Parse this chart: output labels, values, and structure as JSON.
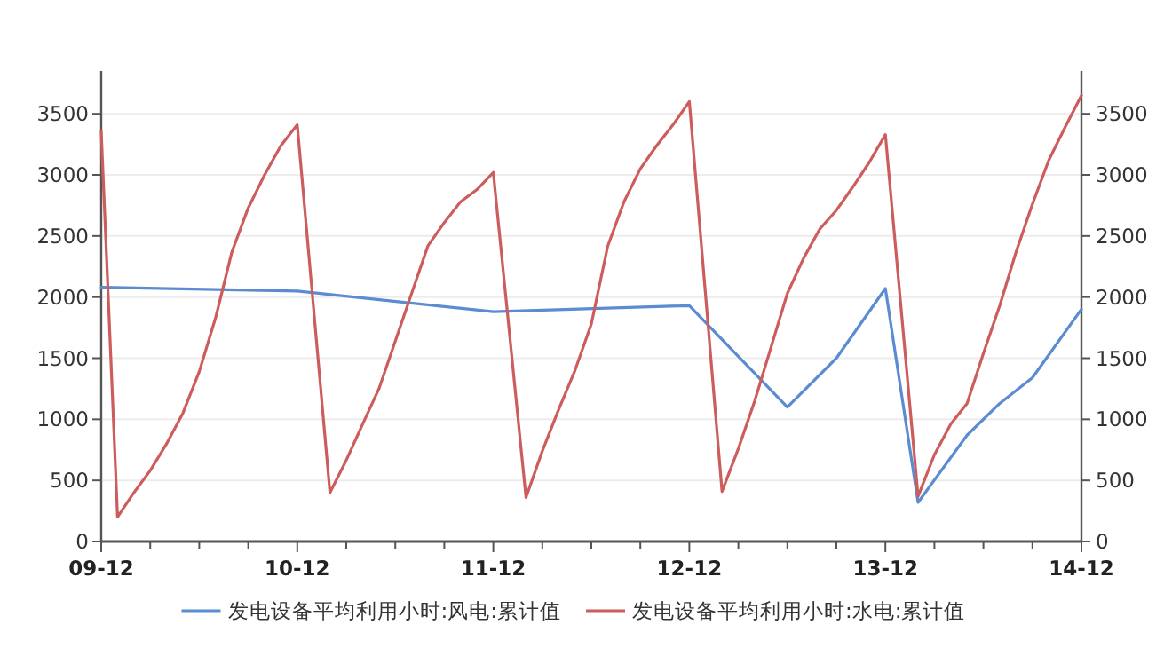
{
  "chart_data": {
    "type": "line",
    "series": [
      {
        "name": "发电设备平均利用小时:风电:累计值",
        "color": "#5b8bd0",
        "x": [
          "2009-12",
          "2010-12",
          "2011-12",
          "2012-12",
          "2013-06",
          "2013-09",
          "2013-12",
          "2014-02",
          "2014-05",
          "2014-07",
          "2014-09",
          "2014-12"
        ],
        "values": [
          2080,
          2050,
          1880,
          1930,
          1100,
          1500,
          2070,
          320,
          870,
          1130,
          1340,
          1900
        ]
      },
      {
        "name": "发电设备平均利用小时:水电:累计值",
        "color": "#cd5c5c",
        "x": [
          "2009-12",
          "2010-01",
          "2010-02",
          "2010-03",
          "2010-04",
          "2010-05",
          "2010-06",
          "2010-07",
          "2010-08",
          "2010-09",
          "2010-10",
          "2010-11",
          "2010-12",
          "2011-02",
          "2011-03",
          "2011-04",
          "2011-05",
          "2011-06",
          "2011-07",
          "2011-08",
          "2011-09",
          "2011-10",
          "2011-11",
          "2011-12",
          "2012-02",
          "2012-03",
          "2012-04",
          "2012-05",
          "2012-06",
          "2012-07",
          "2012-08",
          "2012-09",
          "2012-10",
          "2012-11",
          "2012-12",
          "2013-02",
          "2013-03",
          "2013-04",
          "2013-05",
          "2013-06",
          "2013-07",
          "2013-08",
          "2013-09",
          "2013-10",
          "2013-11",
          "2013-12",
          "2014-02",
          "2014-03",
          "2014-04",
          "2014-05",
          "2014-06",
          "2014-07",
          "2014-08",
          "2014-09",
          "2014-10",
          "2014-11",
          "2014-12"
        ],
        "values": [
          3360,
          200,
          400,
          580,
          800,
          1050,
          1390,
          1830,
          2370,
          2730,
          3000,
          3240,
          3410,
          400,
          665,
          960,
          1250,
          1640,
          2030,
          2420,
          2610,
          2780,
          2880,
          3020,
          360,
          740,
          1080,
          1400,
          1780,
          2415,
          2780,
          3050,
          3240,
          3410,
          3600,
          410,
          760,
          1150,
          1590,
          2030,
          2320,
          2560,
          2710,
          2900,
          3100,
          3330,
          370,
          710,
          960,
          1130,
          1540,
          1930,
          2370,
          2760,
          3120,
          3390,
          3650
        ]
      }
    ],
    "xlim": [
      "2009-12",
      "2014-12"
    ],
    "xticks": [
      {
        "value": "2009-12",
        "label": "09-12"
      },
      {
        "value": "2010-03",
        "label": null
      },
      {
        "value": "2010-06",
        "label": null
      },
      {
        "value": "2010-09",
        "label": null
      },
      {
        "value": "2010-12",
        "label": "10-12"
      },
      {
        "value": "2011-03",
        "label": null
      },
      {
        "value": "2011-06",
        "label": null
      },
      {
        "value": "2011-09",
        "label": null
      },
      {
        "value": "2011-12",
        "label": "11-12"
      },
      {
        "value": "2012-03",
        "label": null
      },
      {
        "value": "2012-06",
        "label": null
      },
      {
        "value": "2012-09",
        "label": null
      },
      {
        "value": "2012-12",
        "label": "12-12"
      },
      {
        "value": "2013-03",
        "label": null
      },
      {
        "value": "2013-06",
        "label": null
      },
      {
        "value": "2013-09",
        "label": null
      },
      {
        "value": "2013-12",
        "label": "13-12"
      },
      {
        "value": "2014-03",
        "label": null
      },
      {
        "value": "2014-06",
        "label": null
      },
      {
        "value": "2014-09",
        "label": null
      },
      {
        "value": "2014-12",
        "label": "14-12"
      }
    ],
    "ylim": [
      0,
      3850
    ],
    "yticks": [
      0,
      500,
      1000,
      1500,
      2000,
      2500,
      3000,
      3500
    ],
    "y2lim": [
      0,
      3850
    ],
    "y2ticks": [
      0,
      500,
      1000,
      1500,
      2000,
      2500,
      3000,
      3500
    ],
    "grid": "y",
    "legend": "bottom",
    "marker": "none",
    "line_style": "solid"
  }
}
